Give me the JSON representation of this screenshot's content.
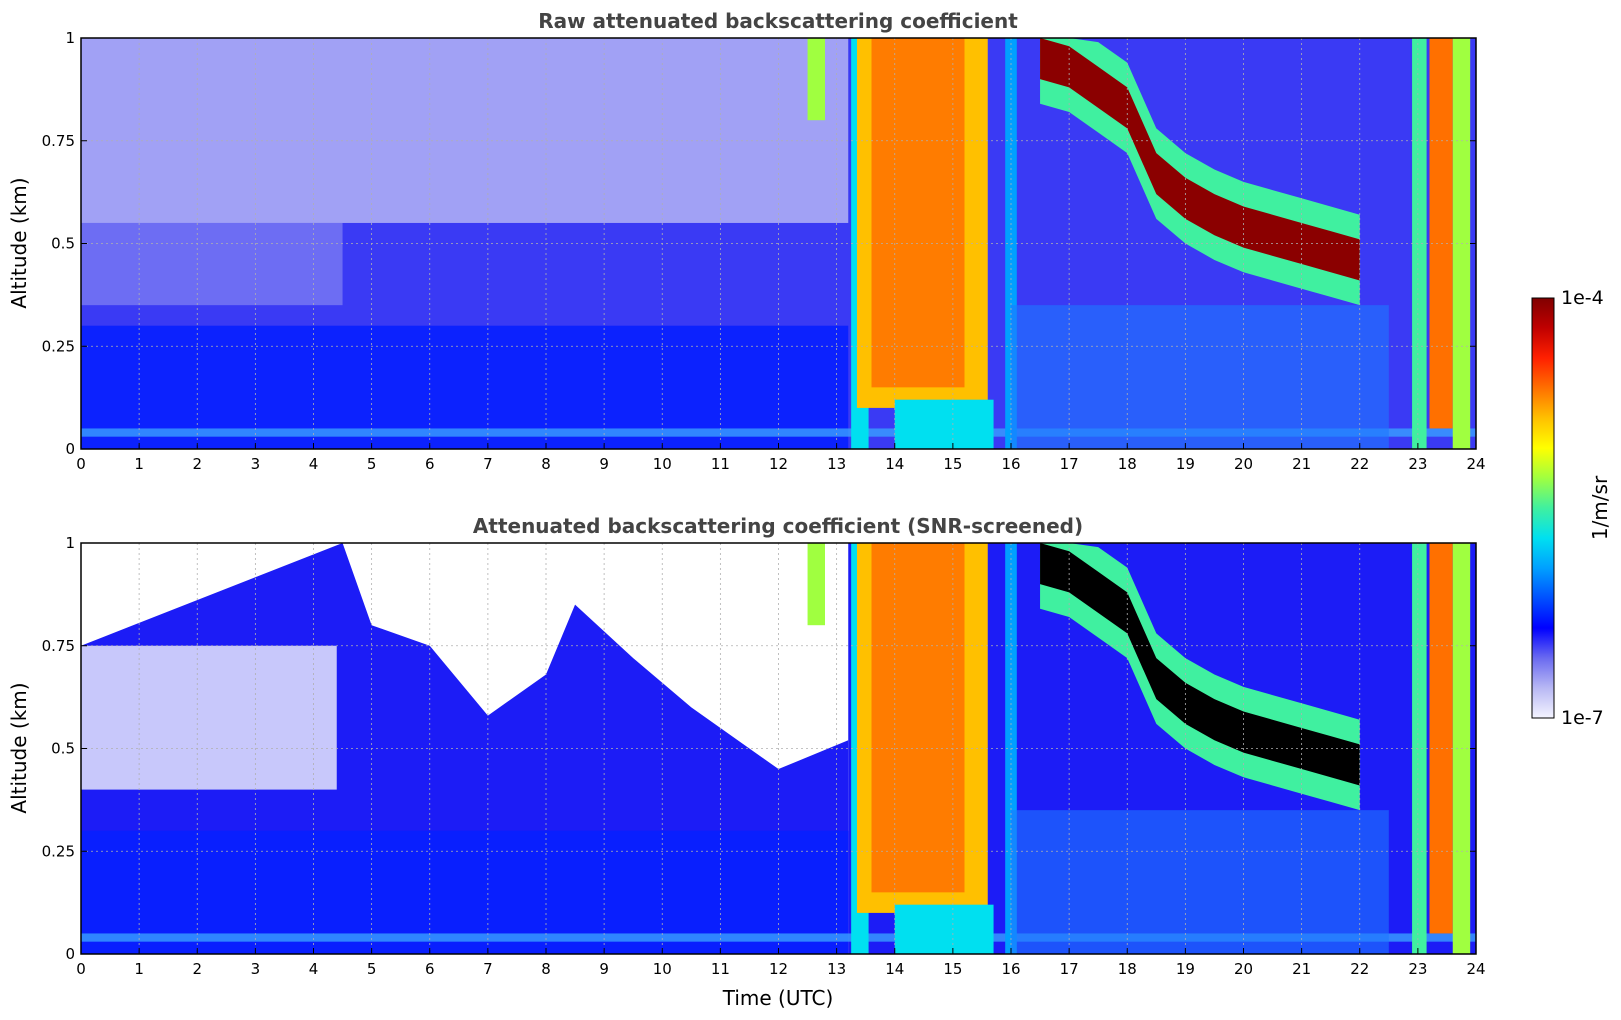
{
  "colors": {
    "colormap": [
      "#f4f4ff",
      "#b8b8f4",
      "#6a6af0",
      "#0000ff",
      "#0050ff",
      "#00a0ff",
      "#00e0f0",
      "#40f0a0",
      "#a0ff40",
      "#ffff00",
      "#ffc000",
      "#ff7000",
      "#ff2000",
      "#c00000",
      "#800000"
    ],
    "saturated_screened": "#000000",
    "grid": "#b0b0b0"
  },
  "chart_data": [
    {
      "type": "heatmap",
      "title": "Raw attenuated backscattering coefficient",
      "xlabel": "",
      "ylabel": "Altitude (km)",
      "xlim": [
        0,
        24
      ],
      "ylim": [
        0,
        1
      ],
      "xticks": [
        0,
        1,
        2,
        3,
        4,
        5,
        6,
        7,
        8,
        9,
        10,
        11,
        12,
        13,
        14,
        15,
        16,
        17,
        18,
        19,
        20,
        21,
        22,
        23,
        24
      ],
      "yticks": [
        0,
        0.25,
        0.5,
        0.75,
        1
      ],
      "ytick_labels": [
        "0",
        "0.25",
        "0.5",
        "0.75",
        "1"
      ],
      "grid": true,
      "colorscale": "log",
      "cloud_layer_top_km": [
        {
          "x": 16.5,
          "y": 1.0
        },
        {
          "x": 17.0,
          "y": 0.98
        },
        {
          "x": 17.5,
          "y": 0.93
        },
        {
          "x": 18.0,
          "y": 0.88
        },
        {
          "x": 18.5,
          "y": 0.72
        },
        {
          "x": 19.0,
          "y": 0.66
        },
        {
          "x": 19.5,
          "y": 0.62
        },
        {
          "x": 20.0,
          "y": 0.59
        },
        {
          "x": 20.5,
          "y": 0.57
        },
        {
          "x": 21.0,
          "y": 0.55
        },
        {
          "x": 21.5,
          "y": 0.53
        },
        {
          "x": 22.0,
          "y": 0.51
        }
      ]
    },
    {
      "type": "heatmap",
      "title": "Attenuated backscattering coefficient (SNR-screened)",
      "xlabel": "Time (UTC)",
      "ylabel": "Altitude (km)",
      "xlim": [
        0,
        24
      ],
      "ylim": [
        0,
        1
      ],
      "xticks": [
        0,
        1,
        2,
        3,
        4,
        5,
        6,
        7,
        8,
        9,
        10,
        11,
        12,
        13,
        14,
        15,
        16,
        17,
        18,
        19,
        20,
        21,
        22,
        23,
        24
      ],
      "yticks": [
        0,
        0.25,
        0.5,
        0.75,
        1
      ],
      "ytick_labels": [
        "0",
        "0.25",
        "0.5",
        "0.75",
        "1"
      ],
      "grid": true,
      "colorscale": "log",
      "screening_top_km": [
        {
          "x": 0,
          "y": 0.75
        },
        {
          "x": 4.5,
          "y": 1.0
        },
        {
          "x": 5.0,
          "y": 0.8
        },
        {
          "x": 6.0,
          "y": 0.75
        },
        {
          "x": 7.0,
          "y": 0.58
        },
        {
          "x": 8.0,
          "y": 0.68
        },
        {
          "x": 8.5,
          "y": 0.85
        },
        {
          "x": 9.5,
          "y": 0.72
        },
        {
          "x": 10.5,
          "y": 0.6
        },
        {
          "x": 12.0,
          "y": 0.45
        },
        {
          "x": 13.2,
          "y": 0.52
        }
      ]
    }
  ],
  "colorbar": {
    "label": "1/m/sr",
    "max_label": "1e-4",
    "min_label": "1e-7"
  }
}
